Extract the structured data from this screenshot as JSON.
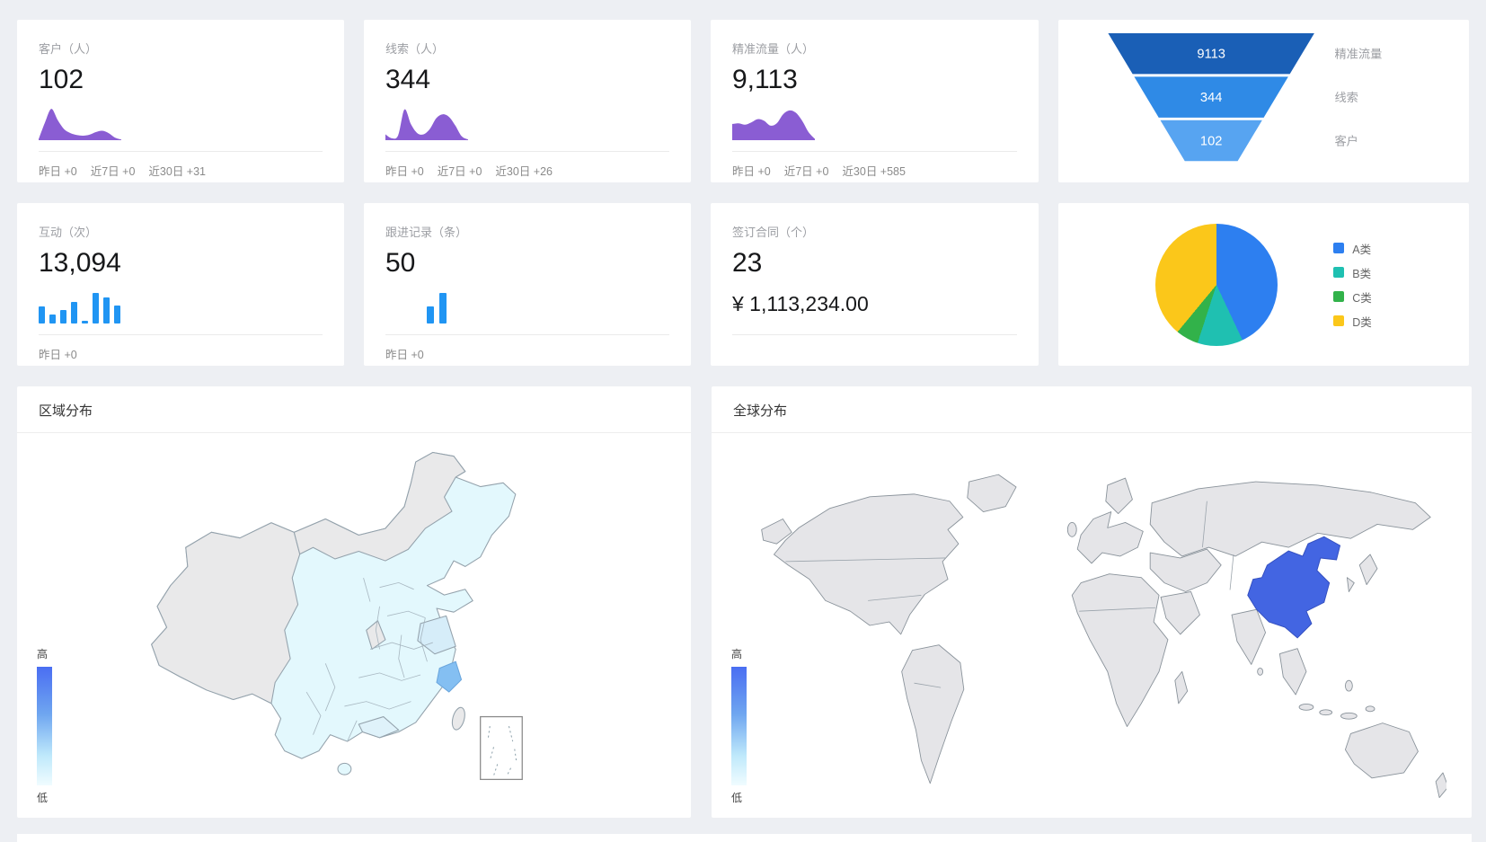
{
  "page": {
    "background": "#edeff3",
    "card_background": "#ffffff"
  },
  "stat_cards": [
    {
      "title": "客户（人）",
      "value": "102",
      "footer": [
        "昨日 +0",
        "近7日 +0",
        "近30日 +31"
      ]
    },
    {
      "title": "线索（人）",
      "value": "344",
      "footer": [
        "昨日 +0",
        "近7日 +0",
        "近30日 +26"
      ]
    },
    {
      "title": "精准流量（人）",
      "value": "9,113",
      "footer": [
        "昨日 +0",
        "近7日 +0",
        "近30日 +585"
      ]
    },
    {
      "title": "互动（次）",
      "value": "13,094",
      "footer": [
        "昨日 +0"
      ]
    },
    {
      "title": "跟进记录（条）",
      "value": "50",
      "footer": [
        "昨日 +0"
      ]
    },
    {
      "title": "签订合同（个）",
      "value": "23",
      "amount": "¥ 1,113,234.00",
      "footer": []
    }
  ],
  "maps": {
    "china": {
      "title": "区域分布",
      "legend_high": "高",
      "legend_low": "低"
    },
    "world": {
      "title": "全球分布",
      "legend_high": "高",
      "legend_low": "低"
    }
  },
  "chart_data": [
    {
      "id": "customers-trend",
      "type": "area",
      "color": "#8a5dd3",
      "points_norm": [
        0.03,
        0.55,
        0.97,
        0.62,
        0.34,
        0.22,
        0.16,
        0.14,
        0.17,
        0.25,
        0.29,
        0.22,
        0.08,
        0.02
      ]
    },
    {
      "id": "leads-trend",
      "type": "area",
      "color": "#8a5dd3",
      "points_norm": [
        0.18,
        0.06,
        0.15,
        0.95,
        0.5,
        0.22,
        0.18,
        0.35,
        0.68,
        0.8,
        0.72,
        0.45,
        0.12,
        0.02
      ]
    },
    {
      "id": "traffic-trend",
      "type": "area",
      "color": "#8a5dd3",
      "points_norm": [
        0.5,
        0.52,
        0.48,
        0.55,
        0.65,
        0.6,
        0.45,
        0.52,
        0.8,
        0.92,
        0.85,
        0.6,
        0.25,
        0.04
      ]
    },
    {
      "id": "interactions-bars",
      "type": "bar",
      "color": "#2095f3",
      "values_norm": [
        0.55,
        0.28,
        0.45,
        0.72,
        0.08,
        1.0,
        0.85,
        0.6
      ]
    },
    {
      "id": "followups-bars",
      "type": "bar",
      "color": "#2095f3",
      "values_norm": [
        0.55,
        1.0
      ]
    },
    {
      "id": "conversion-funnel",
      "type": "funnel",
      "stages": [
        {
          "label": "精准流量",
          "value": "9113",
          "color": "#1a5fb6"
        },
        {
          "label": "线索",
          "value": "344",
          "color": "#2f8ae6"
        },
        {
          "label": "客户",
          "value": "102",
          "color": "#57a4f1"
        }
      ]
    },
    {
      "id": "customer-class-pie",
      "type": "pie",
      "legend_position": "right",
      "slices": [
        {
          "name": "A类",
          "pct": 43,
          "color": "#2d7ff0"
        },
        {
          "name": "B类",
          "pct": 12,
          "color": "#1fc0b1"
        },
        {
          "name": "C类",
          "pct": 6,
          "color": "#32b24a"
        },
        {
          "name": "D类",
          "pct": 39,
          "color": "#fbc71a"
        }
      ]
    },
    {
      "id": "china-region-map",
      "type": "map",
      "title": "区域分布",
      "highlight_region": "浙江",
      "palette": {
        "high": "#4a6ef2",
        "low": "#f0fcff",
        "base": "#e3f8fd",
        "inactive": "#e9e9ea",
        "highlight": "#84bff2"
      }
    },
    {
      "id": "world-region-map",
      "type": "map",
      "title": "全球分布",
      "highlight_region": "中国",
      "palette": {
        "high": "#4a6ef2",
        "low": "#f0fcff",
        "base": "#e5e5e8",
        "highlight": "#4365e2"
      }
    }
  ]
}
